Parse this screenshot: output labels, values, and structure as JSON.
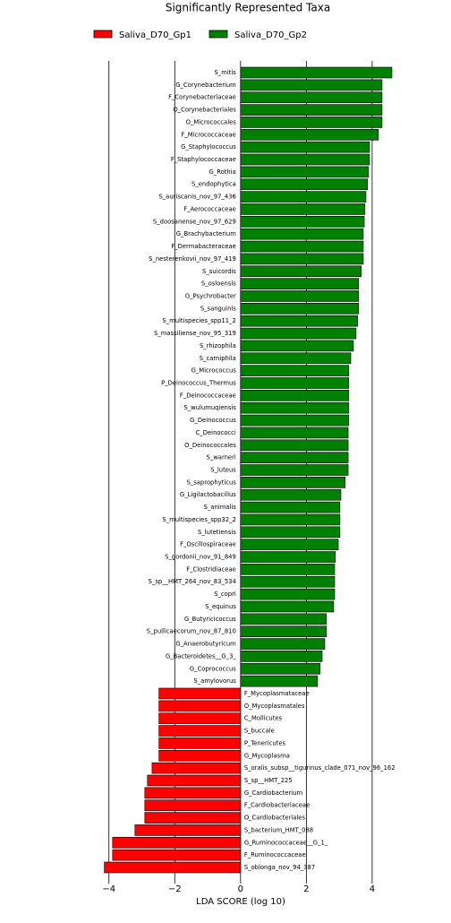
{
  "chart_data": {
    "type": "barh",
    "title": "Significantly Represented Taxa",
    "x_label": "LDA SCORE (log 10)",
    "categories": [
      "S_mitis",
      "G_Corynebacterium",
      "F_Corynebacteriaceae",
      "O_Corynebacteriales",
      "O_Micrococcales",
      "F_Micrococcaceae",
      "G_Staphylococcus",
      "F_Staphylococcaceae",
      "G_Rothia",
      "S_endophytica",
      "S_auriscanis_nov_97_436",
      "F_Aerococcaceae",
      "S_doosanense_nov_97_629",
      "G_Brachybacterium",
      "F_Dermabacteraceae",
      "S_nesterenkovii_nov_97_419",
      "S_suicordis",
      "S_osloensis",
      "G_Psychrobacter",
      "S_sanguinis",
      "S_multispecies_spp11_2",
      "S_massiliense_nov_95_319",
      "S_rhizophila",
      "S_carniphila",
      "G_Micrococcus",
      "P_Deinococcus_Thermus",
      "F_Deinococcaceae",
      "S_wulumuqiensis",
      "G_Deinococcus",
      "C_Deinococci",
      "O_Deinococcales",
      "S_warneri",
      "S_luteus",
      "S_saprophyticus",
      "G_Ligilactobacillus",
      "S_animalis",
      "S_multispecies_spp32_2",
      "S_lutetiensis",
      "F_Oscillospiraceae",
      "S_gordonii_nov_91_849",
      "F_Clostridiaceae",
      "S_sp__HMT_264_nov_83_534",
      "S_copri",
      "S_equinus",
      "G_Butyricicoccus",
      "S_pullicaecorum_nov_87_810",
      "G_Anaerobutyricum",
      "G_Bacteroidetes__G_3_",
      "G_Coprococcus",
      "S_amylovorus",
      "F_Mycoplasmataceae",
      "O_Mycoplasmatales",
      "C_Mollicutes",
      "S_buccale",
      "P_Tenericutes",
      "G_Mycoplasma",
      "S_oralis_subsp__tigurinus_clade_071_nov_96_162",
      "S_sp__HMT_225",
      "G_Cardiobacterium",
      "F_Cardiobacteriaceae",
      "O_Cardiobacteriales",
      "S_bacterium_HMT_088",
      "G_Ruminococcaceae__G_1_",
      "F_Ruminococcaceae",
      "S_oblonga_nov_94_387"
    ],
    "series": [
      {
        "name": "Saliva_D70_Gp1",
        "color": "#ff0000",
        "values": [
          null,
          null,
          null,
          null,
          null,
          null,
          null,
          null,
          null,
          null,
          null,
          null,
          null,
          null,
          null,
          null,
          null,
          null,
          null,
          null,
          null,
          null,
          null,
          null,
          null,
          null,
          null,
          null,
          null,
          null,
          null,
          null,
          null,
          null,
          null,
          null,
          null,
          null,
          null,
          null,
          null,
          null,
          null,
          null,
          null,
          null,
          null,
          null,
          null,
          null,
          -2.48,
          -2.48,
          -2.48,
          -2.48,
          -2.48,
          -2.48,
          -2.69,
          -2.83,
          -2.91,
          -2.91,
          -2.91,
          -3.21,
          -3.89,
          -3.89,
          -4.14
        ]
      },
      {
        "name": "Saliva_D70_Gp2",
        "color": "#008000",
        "values": [
          4.6,
          4.3,
          4.3,
          4.3,
          4.3,
          4.19,
          3.92,
          3.92,
          3.89,
          3.86,
          3.81,
          3.78,
          3.76,
          3.73,
          3.73,
          3.73,
          3.67,
          3.59,
          3.59,
          3.59,
          3.56,
          3.51,
          3.43,
          3.35,
          3.29,
          3.29,
          3.29,
          3.29,
          3.29,
          3.27,
          3.27,
          3.27,
          3.27,
          3.18,
          3.05,
          3.02,
          3.02,
          3.02,
          2.97,
          2.88,
          2.86,
          2.86,
          2.86,
          2.83,
          2.61,
          2.61,
          2.56,
          2.48,
          2.42,
          2.34,
          null,
          null,
          null,
          null,
          null,
          null,
          null,
          null,
          null,
          null,
          null,
          null,
          null,
          null,
          null
        ]
      }
    ],
    "xlim": [
      -4.7,
      4.9
    ],
    "xticks": [
      {
        "value": -4,
        "label": "−4"
      },
      {
        "value": -2,
        "label": "−2"
      },
      0,
      2,
      4
    ],
    "grid": true
  }
}
